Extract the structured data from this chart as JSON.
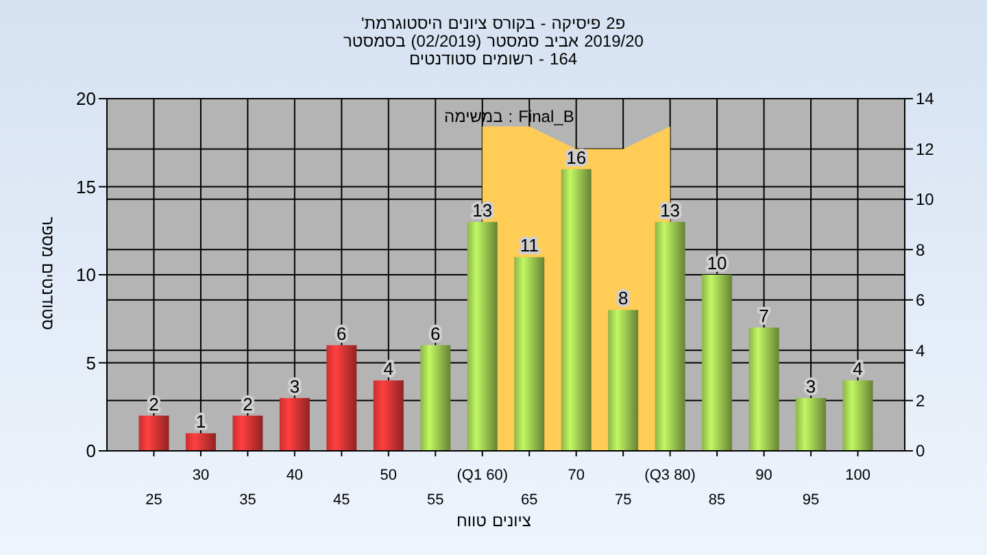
{
  "chart_data": {
    "type": "bar",
    "title": "'היסטוגרמת ציונים בקורס - פיסיקה פ2",
    "subtitle": "בסמסטר (02/2019) סמסטר אביב 2019/20\nסטודנטים רשומים - 164",
    "xlabel": "טווח ציונים",
    "ylabel": "מספר סטודנטים",
    "annotations": [
      "במשימה : Final_B"
    ],
    "categories": [
      "25",
      "30",
      "35",
      "40",
      "45",
      "50",
      "55",
      "(Q1 60)",
      "65",
      "70",
      "75",
      "(Q3 80)",
      "85",
      "90",
      "95",
      "100"
    ],
    "ylim": [
      0,
      20
    ],
    "yticks": [
      0,
      5,
      10,
      15,
      20
    ],
    "y2lim": [
      0,
      14
    ],
    "y2ticks": [
      0,
      2,
      4,
      6,
      8,
      10,
      12,
      14
    ],
    "grid": true,
    "series": [
      {
        "type": "area",
        "axis": "y2",
        "color": "#ffcc55",
        "values": [
          null,
          null,
          null,
          null,
          null,
          null,
          null,
          12.9,
          12.9,
          12,
          12,
          12.9,
          null,
          null,
          null,
          null
        ]
      },
      {
        "colors": [
          "#e03434",
          "#e03434",
          "#e03434",
          "#e03434",
          "#e03434",
          "#e03434",
          "#9cc850",
          "#9cc850",
          "#9cc850",
          "#9cc850",
          "#9cc850",
          "#9cc850",
          "#9cc850",
          "#9cc850",
          "#9cc850",
          "#9cc850"
        ],
        "values": [
          2,
          1,
          2,
          3,
          6,
          4,
          6,
          13,
          11,
          16,
          8,
          13,
          10,
          7,
          3,
          4
        ],
        "value_labels": [
          "2",
          "1",
          "2",
          "3",
          "6",
          "4",
          "6",
          "13",
          "11",
          "16",
          "8",
          "13",
          "10",
          "7",
          "3",
          "4"
        ]
      }
    ]
  }
}
